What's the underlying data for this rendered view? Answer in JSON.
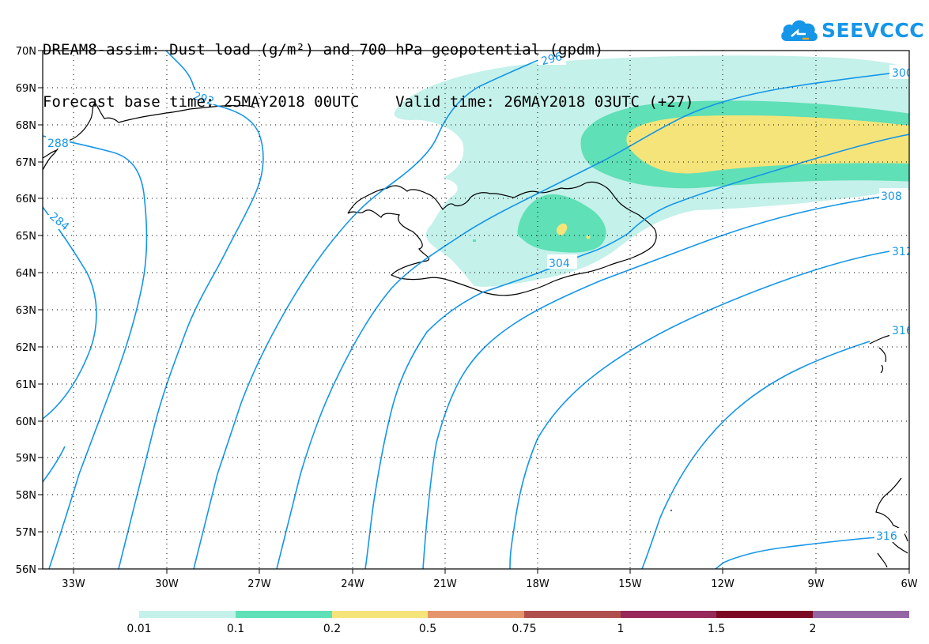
{
  "title": {
    "line1": "DREAM8-assim: Dust load (g/m²) and 700 hPa geopotential (gpdm)",
    "line2": "Forecast base time: 25MAY2018 00UTC    Valid time: 26MAY2018 03UTC (+27)"
  },
  "logo": {
    "text": "SEEVCCC",
    "icon": "cloud-icon"
  },
  "map": {
    "lat_labels": [
      "70N",
      "69N",
      "68N",
      "67N",
      "66N",
      "65N",
      "64N",
      "63N",
      "62N",
      "61N",
      "60N",
      "59N",
      "58N",
      "57N",
      "56N"
    ],
    "lon_labels": [
      "33W",
      "30W",
      "27W",
      "24W",
      "21W",
      "18W",
      "15W",
      "12W",
      "9W",
      "6W"
    ],
    "contour_labels": [
      "292",
      "296",
      "300",
      "288",
      "284",
      "304",
      "308",
      "312",
      "316",
      "316"
    ]
  },
  "legend": {
    "colors": [
      "#c4f1ea",
      "#5fe0b6",
      "#f5e47a",
      "#e5956b",
      "#b0504e",
      "#96285a",
      "#7d0a25",
      "#3e2a1e",
      "#9467a4"
    ],
    "labels": [
      "0.01",
      "0.1",
      "0.2",
      "0.5",
      "0.75",
      "1",
      "1.5",
      "2"
    ]
  },
  "chart_data": {
    "type": "map",
    "field": "dust load (g/m²)",
    "contour_field": "700 hPa geopotential (gpdm)",
    "lon_range": [
      -34,
      -6
    ],
    "lat_range": [
      56,
      70
    ],
    "contour_levels": [
      284,
      288,
      292,
      296,
      300,
      304,
      308,
      312,
      316
    ],
    "color_scale": [
      0.01,
      0.1,
      0.2,
      0.5,
      0.75,
      1,
      1.5,
      2
    ]
  }
}
